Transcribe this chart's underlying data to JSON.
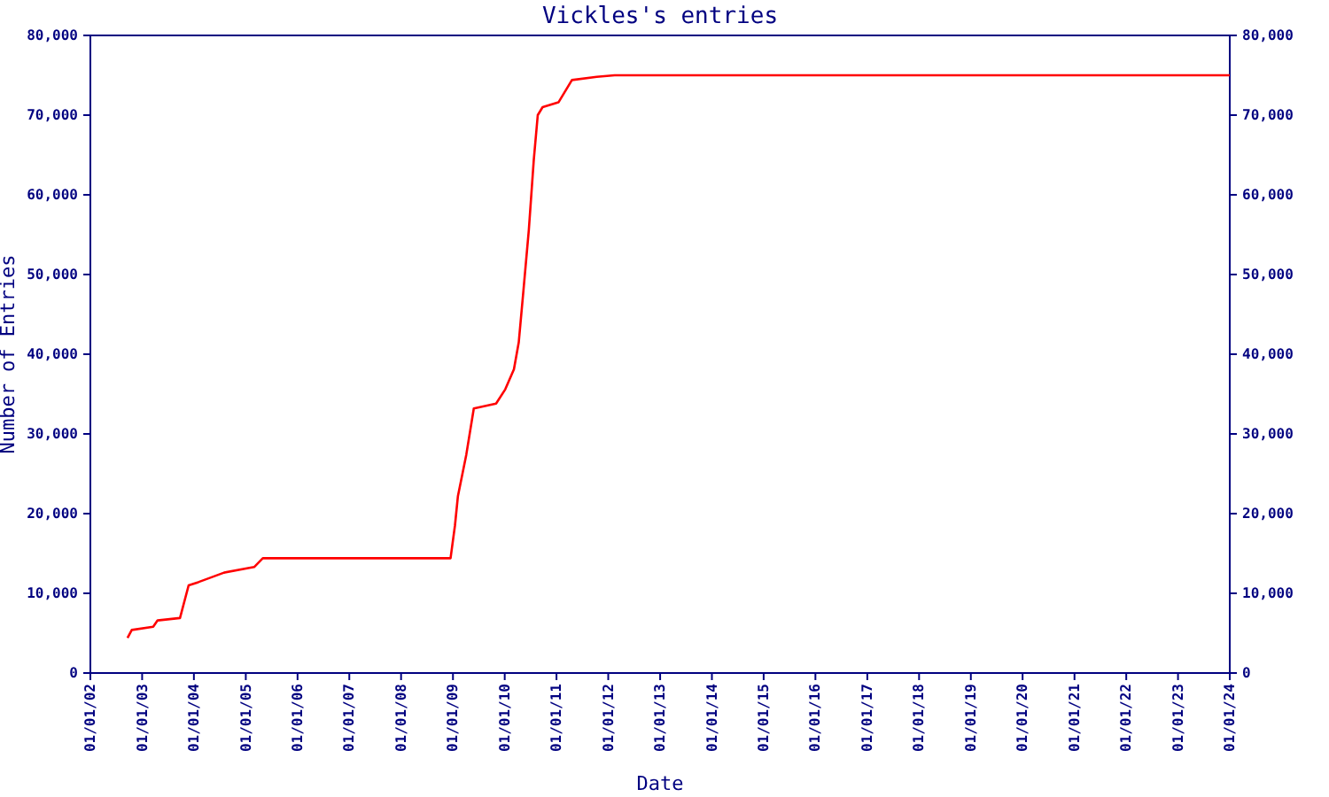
{
  "chart_data": {
    "type": "line",
    "title": "Vickles's entries",
    "xlabel": "Date",
    "ylabel": "Number of Entries",
    "x": [
      "2002-09-20",
      "2002-10-20",
      "2003-03-20",
      "2003-04-20",
      "2003-09-25",
      "2003-11-25",
      "2004-02-01",
      "2004-08-01",
      "2005-03-01",
      "2005-05-01",
      "2008-12-15",
      "2009-01-15",
      "2009-02-05",
      "2009-04-05",
      "2009-05-28",
      "2009-11-01",
      "2010-01-05",
      "2010-03-07",
      "2010-04-10",
      "2010-05-10",
      "2010-06-20",
      "2010-07-25",
      "2010-08-22",
      "2010-09-25",
      "2011-01-15",
      "2011-04-20",
      "2011-10-12",
      "2012-02-15",
      "2024-01-01"
    ],
    "series": [
      {
        "color": "#ff0000",
        "values": [
          4400,
          5400,
          5800,
          6600,
          6900,
          11000,
          11400,
          12600,
          13300,
          14400,
          14400,
          18500,
          22200,
          27400,
          33200,
          33800,
          35600,
          38100,
          41500,
          47400,
          55600,
          64400,
          70000,
          71000,
          71600,
          74400,
          74800,
          75000,
          75000
        ]
      }
    ],
    "xlim": [
      "2002-01-01",
      "2024-01-01"
    ],
    "xticks": [
      {
        "value": "2002-01-01",
        "label": "01/01/02"
      },
      {
        "value": "2003-01-01",
        "label": "01/01/03"
      },
      {
        "value": "2004-01-01",
        "label": "01/01/04"
      },
      {
        "value": "2005-01-01",
        "label": "01/01/05"
      },
      {
        "value": "2006-01-01",
        "label": "01/01/06"
      },
      {
        "value": "2007-01-01",
        "label": "01/01/07"
      },
      {
        "value": "2008-01-01",
        "label": "01/01/08"
      },
      {
        "value": "2009-01-01",
        "label": "01/01/09"
      },
      {
        "value": "2010-01-01",
        "label": "01/01/10"
      },
      {
        "value": "2011-01-01",
        "label": "01/01/11"
      },
      {
        "value": "2012-01-01",
        "label": "01/01/12"
      },
      {
        "value": "2013-01-01",
        "label": "01/01/13"
      },
      {
        "value": "2014-01-01",
        "label": "01/01/14"
      },
      {
        "value": "2015-01-01",
        "label": "01/01/15"
      },
      {
        "value": "2016-01-01",
        "label": "01/01/16"
      },
      {
        "value": "2017-01-01",
        "label": "01/01/17"
      },
      {
        "value": "2018-01-01",
        "label": "01/01/18"
      },
      {
        "value": "2019-01-01",
        "label": "01/01/19"
      },
      {
        "value": "2020-01-01",
        "label": "01/01/20"
      },
      {
        "value": "2021-01-01",
        "label": "01/01/21"
      },
      {
        "value": "2022-01-01",
        "label": "01/01/22"
      },
      {
        "value": "2023-01-01",
        "label": "01/01/23"
      },
      {
        "value": "2024-01-01",
        "label": "01/01/24"
      }
    ],
    "ylim": [
      0,
      80000
    ],
    "yticks": [
      0,
      {
        "value": 10000,
        "label": "10,000"
      },
      {
        "value": 20000,
        "label": "20,000"
      },
      {
        "value": 30000,
        "label": "30,000"
      },
      {
        "value": 40000,
        "label": "40,000"
      },
      {
        "value": 50000,
        "label": "50,000"
      },
      {
        "value": 60000,
        "label": "60,000"
      },
      {
        "value": 70000,
        "label": "70,000"
      },
      {
        "value": 80000,
        "label": "80,000"
      }
    ],
    "y2lim": [
      0,
      80000
    ],
    "y2ticks": [
      0,
      {
        "value": 10000,
        "label": "10,000"
      },
      {
        "value": 20000,
        "label": "20,000"
      },
      {
        "value": 30000,
        "label": "30,000"
      },
      {
        "value": 40000,
        "label": "40,000"
      },
      {
        "value": 50000,
        "label": "50,000"
      },
      {
        "value": 60000,
        "label": "60,000"
      },
      {
        "value": 70000,
        "label": "70,000"
      },
      {
        "value": 80000,
        "label": "80,000"
      }
    ],
    "marker": "none",
    "line_style": "solid"
  }
}
